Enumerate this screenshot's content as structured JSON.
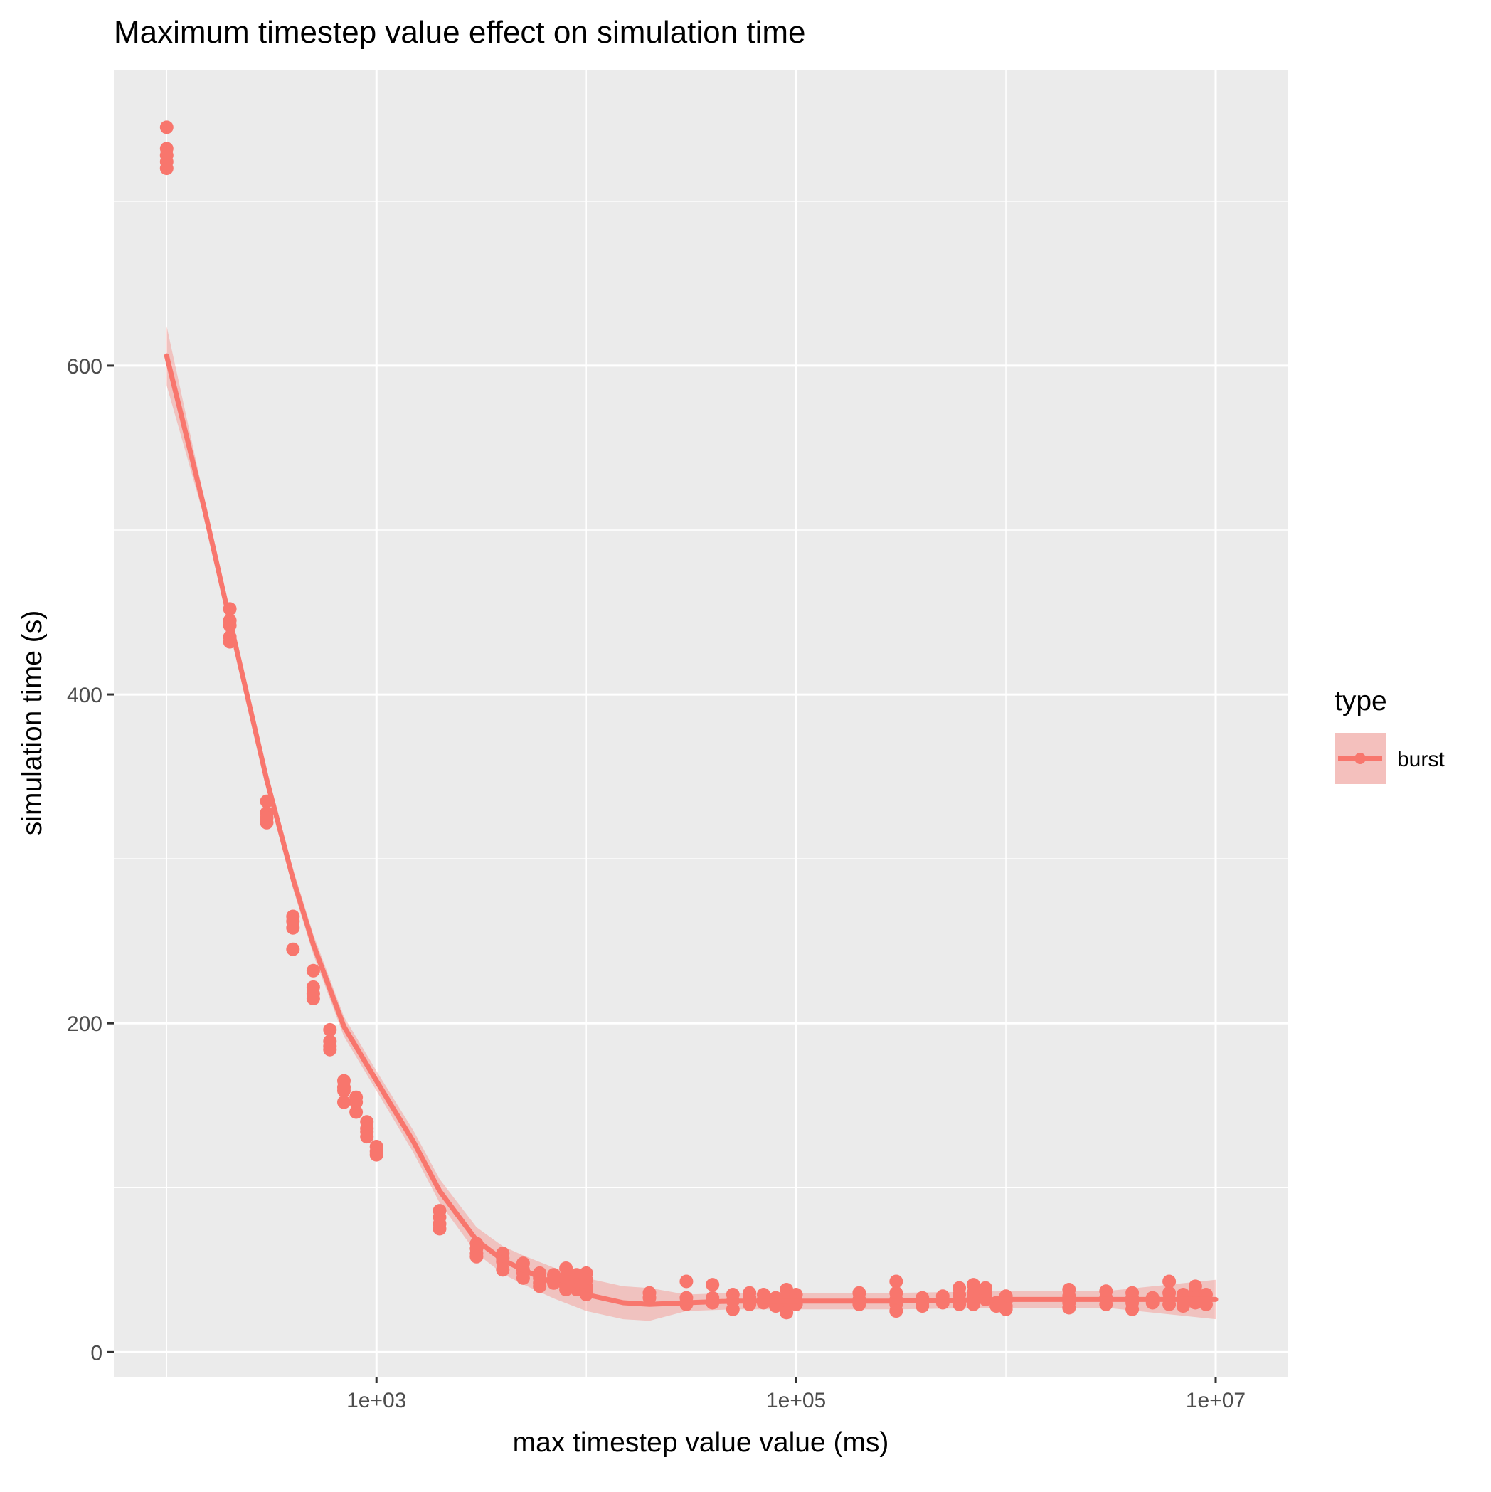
{
  "chart_data": {
    "type": "scatter",
    "title": "Maximum timestep value effect on simulation time",
    "xlabel": "max timestep value value (ms)",
    "ylabel": "simulation time (s)",
    "x_scale": "log10",
    "xlim": [
      56,
      22000000
    ],
    "ylim": [
      -15,
      780
    ],
    "x_ticks": [
      {
        "value": 1000,
        "label": "1e+03"
      },
      {
        "value": 100000,
        "label": "1e+05"
      },
      {
        "value": 10000000,
        "label": "1e+07"
      }
    ],
    "y_ticks": [
      {
        "value": 0,
        "label": "0"
      },
      {
        "value": 200,
        "label": "200"
      },
      {
        "value": 400,
        "label": "400"
      },
      {
        "value": 600,
        "label": "600"
      }
    ],
    "grid": true,
    "legend": {
      "title": "type",
      "position": "right",
      "entries": [
        "burst"
      ]
    },
    "colors": {
      "series": "#f8766d",
      "panel": "#ebebeb",
      "grid": "#ffffff",
      "ribbon": "#f8766d"
    },
    "series": [
      {
        "name": "burst",
        "points": [
          [
            100,
            745
          ],
          [
            100,
            732
          ],
          [
            100,
            728
          ],
          [
            100,
            724
          ],
          [
            100,
            720
          ],
          [
            200,
            452
          ],
          [
            200,
            445
          ],
          [
            200,
            442
          ],
          [
            200,
            435
          ],
          [
            200,
            432
          ],
          [
            300,
            335
          ],
          [
            300,
            328
          ],
          [
            300,
            325
          ],
          [
            300,
            322
          ],
          [
            400,
            265
          ],
          [
            400,
            262
          ],
          [
            400,
            258
          ],
          [
            400,
            245
          ],
          [
            500,
            232
          ],
          [
            500,
            222
          ],
          [
            500,
            218
          ],
          [
            500,
            215
          ],
          [
            600,
            196
          ],
          [
            600,
            189
          ],
          [
            600,
            186
          ],
          [
            600,
            184
          ],
          [
            700,
            165
          ],
          [
            700,
            161
          ],
          [
            700,
            159
          ],
          [
            700,
            152
          ],
          [
            800,
            155
          ],
          [
            800,
            152
          ],
          [
            800,
            146
          ],
          [
            900,
            140
          ],
          [
            900,
            136
          ],
          [
            900,
            134
          ],
          [
            900,
            131
          ],
          [
            1000,
            125
          ],
          [
            1000,
            122
          ],
          [
            1000,
            120
          ],
          [
            2000,
            86
          ],
          [
            2000,
            82
          ],
          [
            2000,
            78
          ],
          [
            2000,
            75
          ],
          [
            3000,
            66
          ],
          [
            3000,
            63
          ],
          [
            3000,
            60
          ],
          [
            3000,
            58
          ],
          [
            4000,
            60
          ],
          [
            4000,
            57
          ],
          [
            4000,
            55
          ],
          [
            4000,
            50
          ],
          [
            5000,
            54
          ],
          [
            5000,
            50
          ],
          [
            5000,
            48
          ],
          [
            5000,
            45
          ],
          [
            6000,
            48
          ],
          [
            6000,
            45
          ],
          [
            6000,
            42
          ],
          [
            6000,
            40
          ],
          [
            7000,
            47
          ],
          [
            7000,
            45
          ],
          [
            7000,
            42
          ],
          [
            8000,
            51
          ],
          [
            8000,
            46
          ],
          [
            8000,
            43
          ],
          [
            8000,
            40
          ],
          [
            8000,
            38
          ],
          [
            9000,
            47
          ],
          [
            9000,
            44
          ],
          [
            9000,
            41
          ],
          [
            9000,
            38
          ],
          [
            10000,
            48
          ],
          [
            10000,
            44
          ],
          [
            10000,
            40
          ],
          [
            10000,
            37
          ],
          [
            10000,
            35
          ],
          [
            20000,
            36
          ],
          [
            20000,
            33
          ],
          [
            30000,
            43
          ],
          [
            30000,
            33
          ],
          [
            30000,
            29
          ],
          [
            40000,
            41
          ],
          [
            40000,
            33
          ],
          [
            40000,
            30
          ],
          [
            50000,
            35
          ],
          [
            50000,
            31
          ],
          [
            50000,
            26
          ],
          [
            60000,
            36
          ],
          [
            60000,
            33
          ],
          [
            60000,
            29
          ],
          [
            70000,
            35
          ],
          [
            70000,
            32
          ],
          [
            70000,
            30
          ],
          [
            80000,
            33
          ],
          [
            80000,
            31
          ],
          [
            80000,
            28
          ],
          [
            90000,
            38
          ],
          [
            90000,
            34
          ],
          [
            90000,
            30
          ],
          [
            90000,
            27
          ],
          [
            90000,
            24
          ],
          [
            100000,
            35
          ],
          [
            100000,
            31
          ],
          [
            100000,
            29
          ],
          [
            200000,
            36
          ],
          [
            200000,
            32
          ],
          [
            200000,
            29
          ],
          [
            300000,
            43
          ],
          [
            300000,
            36
          ],
          [
            300000,
            32
          ],
          [
            300000,
            29
          ],
          [
            300000,
            25
          ],
          [
            400000,
            33
          ],
          [
            400000,
            30
          ],
          [
            400000,
            28
          ],
          [
            500000,
            34
          ],
          [
            500000,
            31
          ],
          [
            500000,
            30
          ],
          [
            600000,
            39
          ],
          [
            600000,
            35
          ],
          [
            600000,
            31
          ],
          [
            600000,
            29
          ],
          [
            700000,
            41
          ],
          [
            700000,
            36
          ],
          [
            700000,
            32
          ],
          [
            700000,
            29
          ],
          [
            800000,
            39
          ],
          [
            800000,
            35
          ],
          [
            800000,
            32
          ],
          [
            900000,
            30
          ],
          [
            900000,
            28
          ],
          [
            1000000,
            34
          ],
          [
            1000000,
            31
          ],
          [
            1000000,
            28
          ],
          [
            1000000,
            26
          ],
          [
            2000000,
            38
          ],
          [
            2000000,
            34
          ],
          [
            2000000,
            30
          ],
          [
            2000000,
            27
          ],
          [
            3000000,
            37
          ],
          [
            3000000,
            33
          ],
          [
            3000000,
            29
          ],
          [
            4000000,
            36
          ],
          [
            4000000,
            33
          ],
          [
            4000000,
            30
          ],
          [
            4000000,
            26
          ],
          [
            5000000,
            33
          ],
          [
            5000000,
            30
          ],
          [
            6000000,
            43
          ],
          [
            6000000,
            36
          ],
          [
            6000000,
            32
          ],
          [
            6000000,
            29
          ],
          [
            7000000,
            35
          ],
          [
            7000000,
            31
          ],
          [
            7000000,
            28
          ],
          [
            8000000,
            40
          ],
          [
            8000000,
            36
          ],
          [
            8000000,
            33
          ],
          [
            8000000,
            30
          ],
          [
            9000000,
            35
          ],
          [
            9000000,
            32
          ],
          [
            9000000,
            29
          ]
        ],
        "smooth": [
          [
            100,
            606
          ],
          [
            150,
            515
          ],
          [
            200,
            445
          ],
          [
            300,
            348
          ],
          [
            400,
            288
          ],
          [
            500,
            248
          ],
          [
            700,
            198
          ],
          [
            1000,
            165
          ],
          [
            1500,
            128
          ],
          [
            2000,
            98
          ],
          [
            3000,
            68
          ],
          [
            4000,
            56
          ],
          [
            5000,
            50
          ],
          [
            7000,
            42
          ],
          [
            10000,
            35
          ],
          [
            15000,
            30
          ],
          [
            20000,
            29
          ],
          [
            30000,
            30
          ],
          [
            50000,
            31
          ],
          [
            100000,
            31
          ],
          [
            300000,
            31
          ],
          [
            1000000,
            32
          ],
          [
            3000000,
            32
          ],
          [
            10000000,
            32
          ]
        ]
      }
    ]
  }
}
